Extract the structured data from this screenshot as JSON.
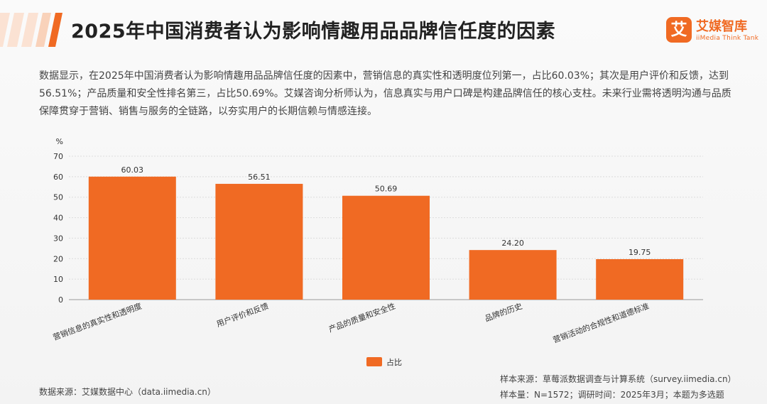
{
  "header": {
    "title": "2025年中国消费者认为影响情趣用品品牌信任度的因素",
    "logo_mark": "艾",
    "logo_cn": "艾媒智库",
    "logo_en": "iiMedia Think Tank",
    "accent_color": "#f06a23"
  },
  "description": "数据显示，在2025年中国消费者认为影响情趣用品品牌信任度的因素中，营销信息的真实性和透明度位列第一，占比60.03%；其次是用户评价和反馈，达到56.51%；产品质量和安全性排名第三，占比50.69%。艾媒咨询分析师认为，信息真实与用户口碑是构建品牌信任的核心支柱。未来行业需将透明沟通与品质保障贯穿于营销、销售与服务的全链路，以夯实用户的长期信赖与情感连接。",
  "chart_data": {
    "type": "bar",
    "title": "",
    "ylabel": "%",
    "xlabel": "",
    "ylim": [
      0,
      70
    ],
    "yticks": [
      0,
      10,
      20,
      30,
      40,
      50,
      60,
      70
    ],
    "categories": [
      "营销信息的真实性和透明度",
      "用户评价和反馈",
      "产品的质量和安全性",
      "品牌的历史",
      "营销活动的合规性和道德标准"
    ],
    "series": [
      {
        "name": "占比",
        "values": [
          60.03,
          56.51,
          50.69,
          24.2,
          19.75
        ],
        "labels": [
          "60.03",
          "56.51",
          "50.69",
          "24.20",
          "19.75"
        ],
        "color": "#f06a23"
      }
    ],
    "grid": true,
    "legend_position": "bottom"
  },
  "footer": {
    "source_left": "数据来源：艾媒数据中心（data.iimedia.cn）",
    "source_right_1": "样本来源：草莓派数据调查与计算系统（survey.iimedia.cn）",
    "source_right_2": "样本量：N=1572；调研时间：2025年3月；本题为多选题"
  }
}
